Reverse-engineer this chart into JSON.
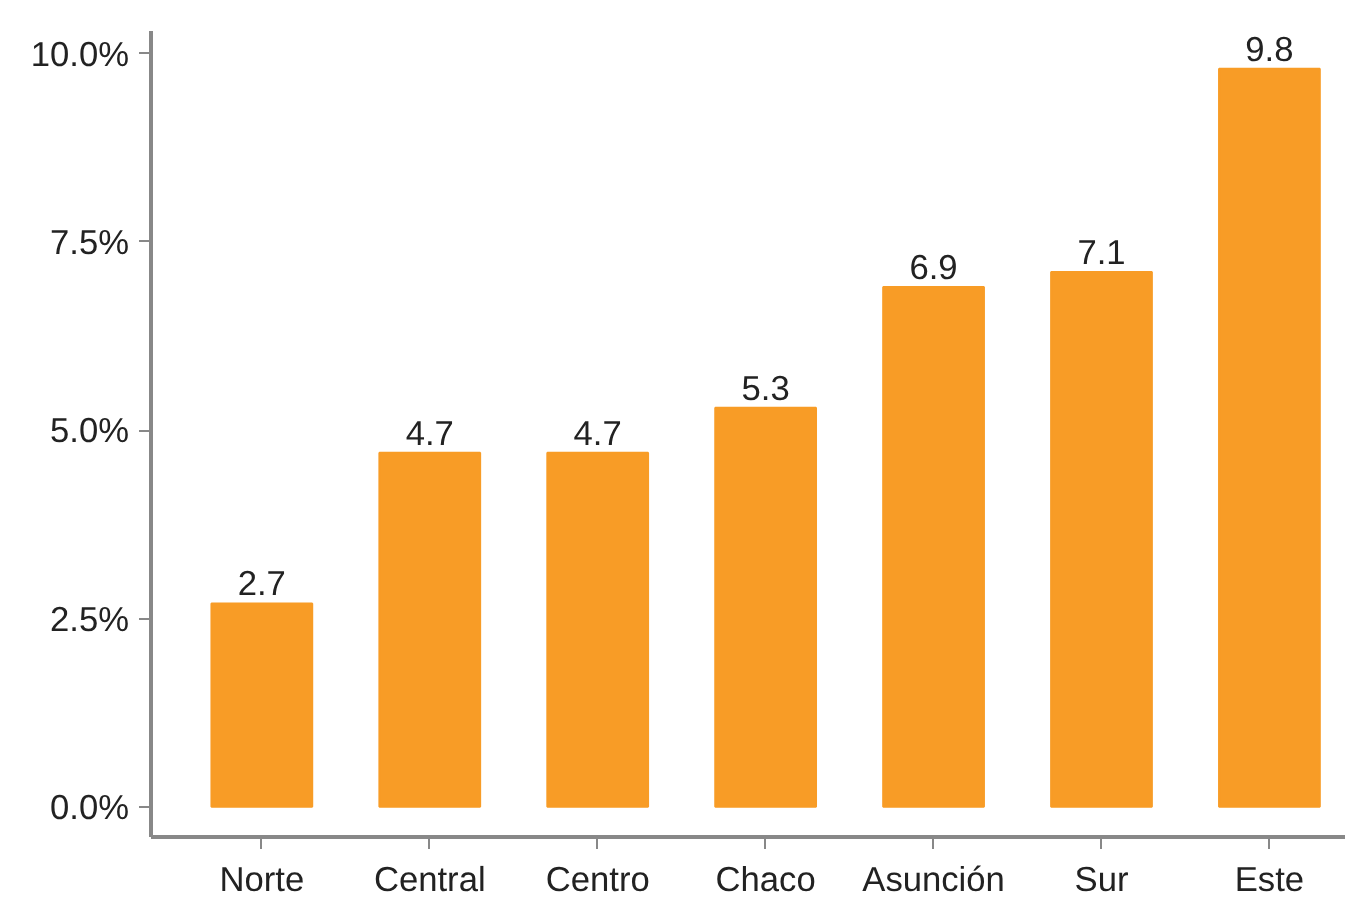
{
  "chart_data": {
    "type": "bar",
    "categories": [
      "Norte",
      "Central",
      "Centro",
      "Chaco",
      "Asunción",
      "Sur",
      "Este"
    ],
    "values": [
      2.7,
      4.7,
      4.7,
      5.3,
      6.9,
      7.1,
      9.8
    ],
    "color": "#f89c26",
    "ylim": [
      -0.4,
      10.3
    ],
    "yticks": [
      {
        "value": 0,
        "label": "0.0%"
      },
      {
        "value": 2.5,
        "label": "2.5%"
      },
      {
        "value": 5,
        "label": "5.0%"
      },
      {
        "value": 7.5,
        "label": "7.5%"
      },
      {
        "value": 10,
        "label": "10.0%"
      }
    ],
    "data_labels": true,
    "grid": false
  }
}
